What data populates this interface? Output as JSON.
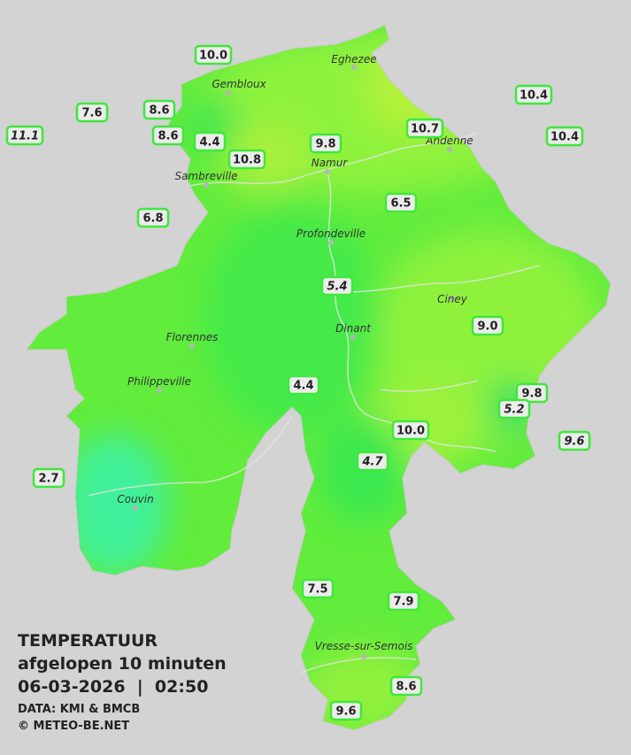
{
  "cities": [
    {
      "name": "Eghezee"
    },
    {
      "name": "Gembloux"
    },
    {
      "name": "Andenne"
    },
    {
      "name": "Sambreville"
    },
    {
      "name": "Namur"
    },
    {
      "name": "Profondeville"
    },
    {
      "name": "Ciney"
    },
    {
      "name": "Dinant"
    },
    {
      "name": "Florennes"
    },
    {
      "name": "Philippeville"
    },
    {
      "name": "Couvin"
    },
    {
      "name": "Vresse-sur-Semois"
    }
  ],
  "stations": [
    {
      "label": "10.0"
    },
    {
      "label": "7.6"
    },
    {
      "label": "8.6"
    },
    {
      "label": "8.6"
    },
    {
      "label": "4.4"
    },
    {
      "label": "10.8"
    },
    {
      "label": "9.8"
    },
    {
      "label": "10.7"
    },
    {
      "label": "10.4"
    },
    {
      "label": "10.4"
    },
    {
      "label": "11.1",
      "italic": true
    },
    {
      "label": "6.8"
    },
    {
      "label": "6.5"
    },
    {
      "label": "5.4",
      "italic": true
    },
    {
      "label": "9.0"
    },
    {
      "label": "4.4"
    },
    {
      "label": "9.8"
    },
    {
      "label": "5.2",
      "italic": true
    },
    {
      "label": "10.0"
    },
    {
      "label": "9.6",
      "italic": true
    },
    {
      "label": "4.7",
      "italic": true
    },
    {
      "label": "2.7"
    },
    {
      "label": "7.5"
    },
    {
      "label": "7.9"
    },
    {
      "label": "8.6"
    },
    {
      "label": "9.6"
    }
  ],
  "caption": {
    "title": "TEMPERATUUR",
    "subtitle": "afgelopen 10 minuten",
    "datetime": "06-03-2026  |  02:50",
    "source": "DATA: KMI & BMCB",
    "credit": "© METEO-BE.NET"
  }
}
